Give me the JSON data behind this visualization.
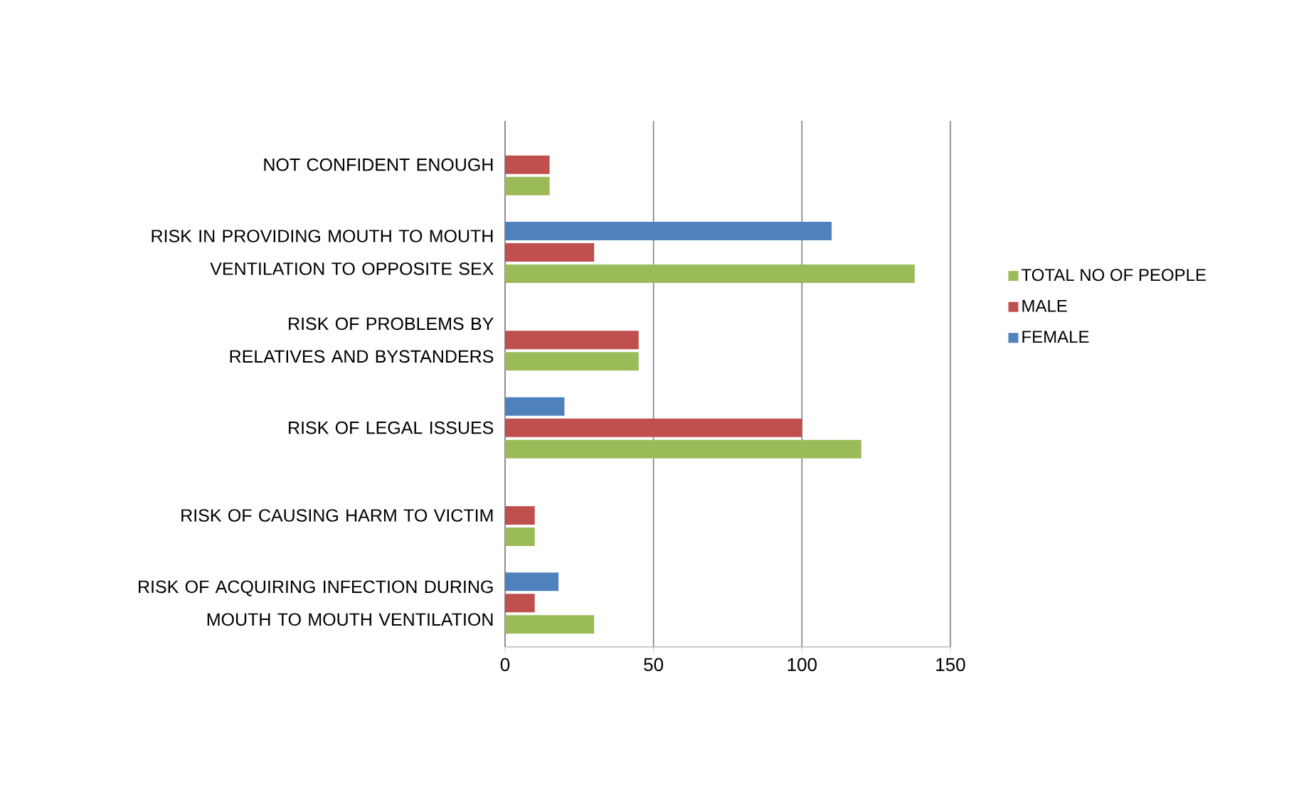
{
  "chart_data": {
    "type": "bar",
    "orientation": "horizontal",
    "categories": [
      "NOT CONFIDENT ENOUGH",
      "RISK IN PROVIDING MOUTH TO MOUTH VENTILATION TO OPPOSITE SEX",
      "RISK OF PROBLEMS BY RELATIVES AND BYSTANDERS",
      "RISK OF LEGAL ISSUES",
      "RISK OF CAUSING HARM TO VICTIM",
      "RISK OF ACQUIRING INFECTION DURING MOUTH TO MOUTH VENTILATION"
    ],
    "series": [
      {
        "name": "TOTAL NO OF PEOPLE",
        "color": "#9bbb59",
        "values": [
          15,
          138,
          45,
          120,
          10,
          30
        ]
      },
      {
        "name": "MALE",
        "color": "#c0504d",
        "values": [
          15,
          30,
          45,
          100,
          10,
          10
        ]
      },
      {
        "name": "FEMALE",
        "color": "#4f81bd",
        "values": [
          null,
          110,
          null,
          20,
          null,
          18
        ]
      }
    ],
    "xlim": [
      0,
      150
    ],
    "xticks": [
      0,
      50,
      100,
      150
    ],
    "grid": "x",
    "legend": "right"
  }
}
